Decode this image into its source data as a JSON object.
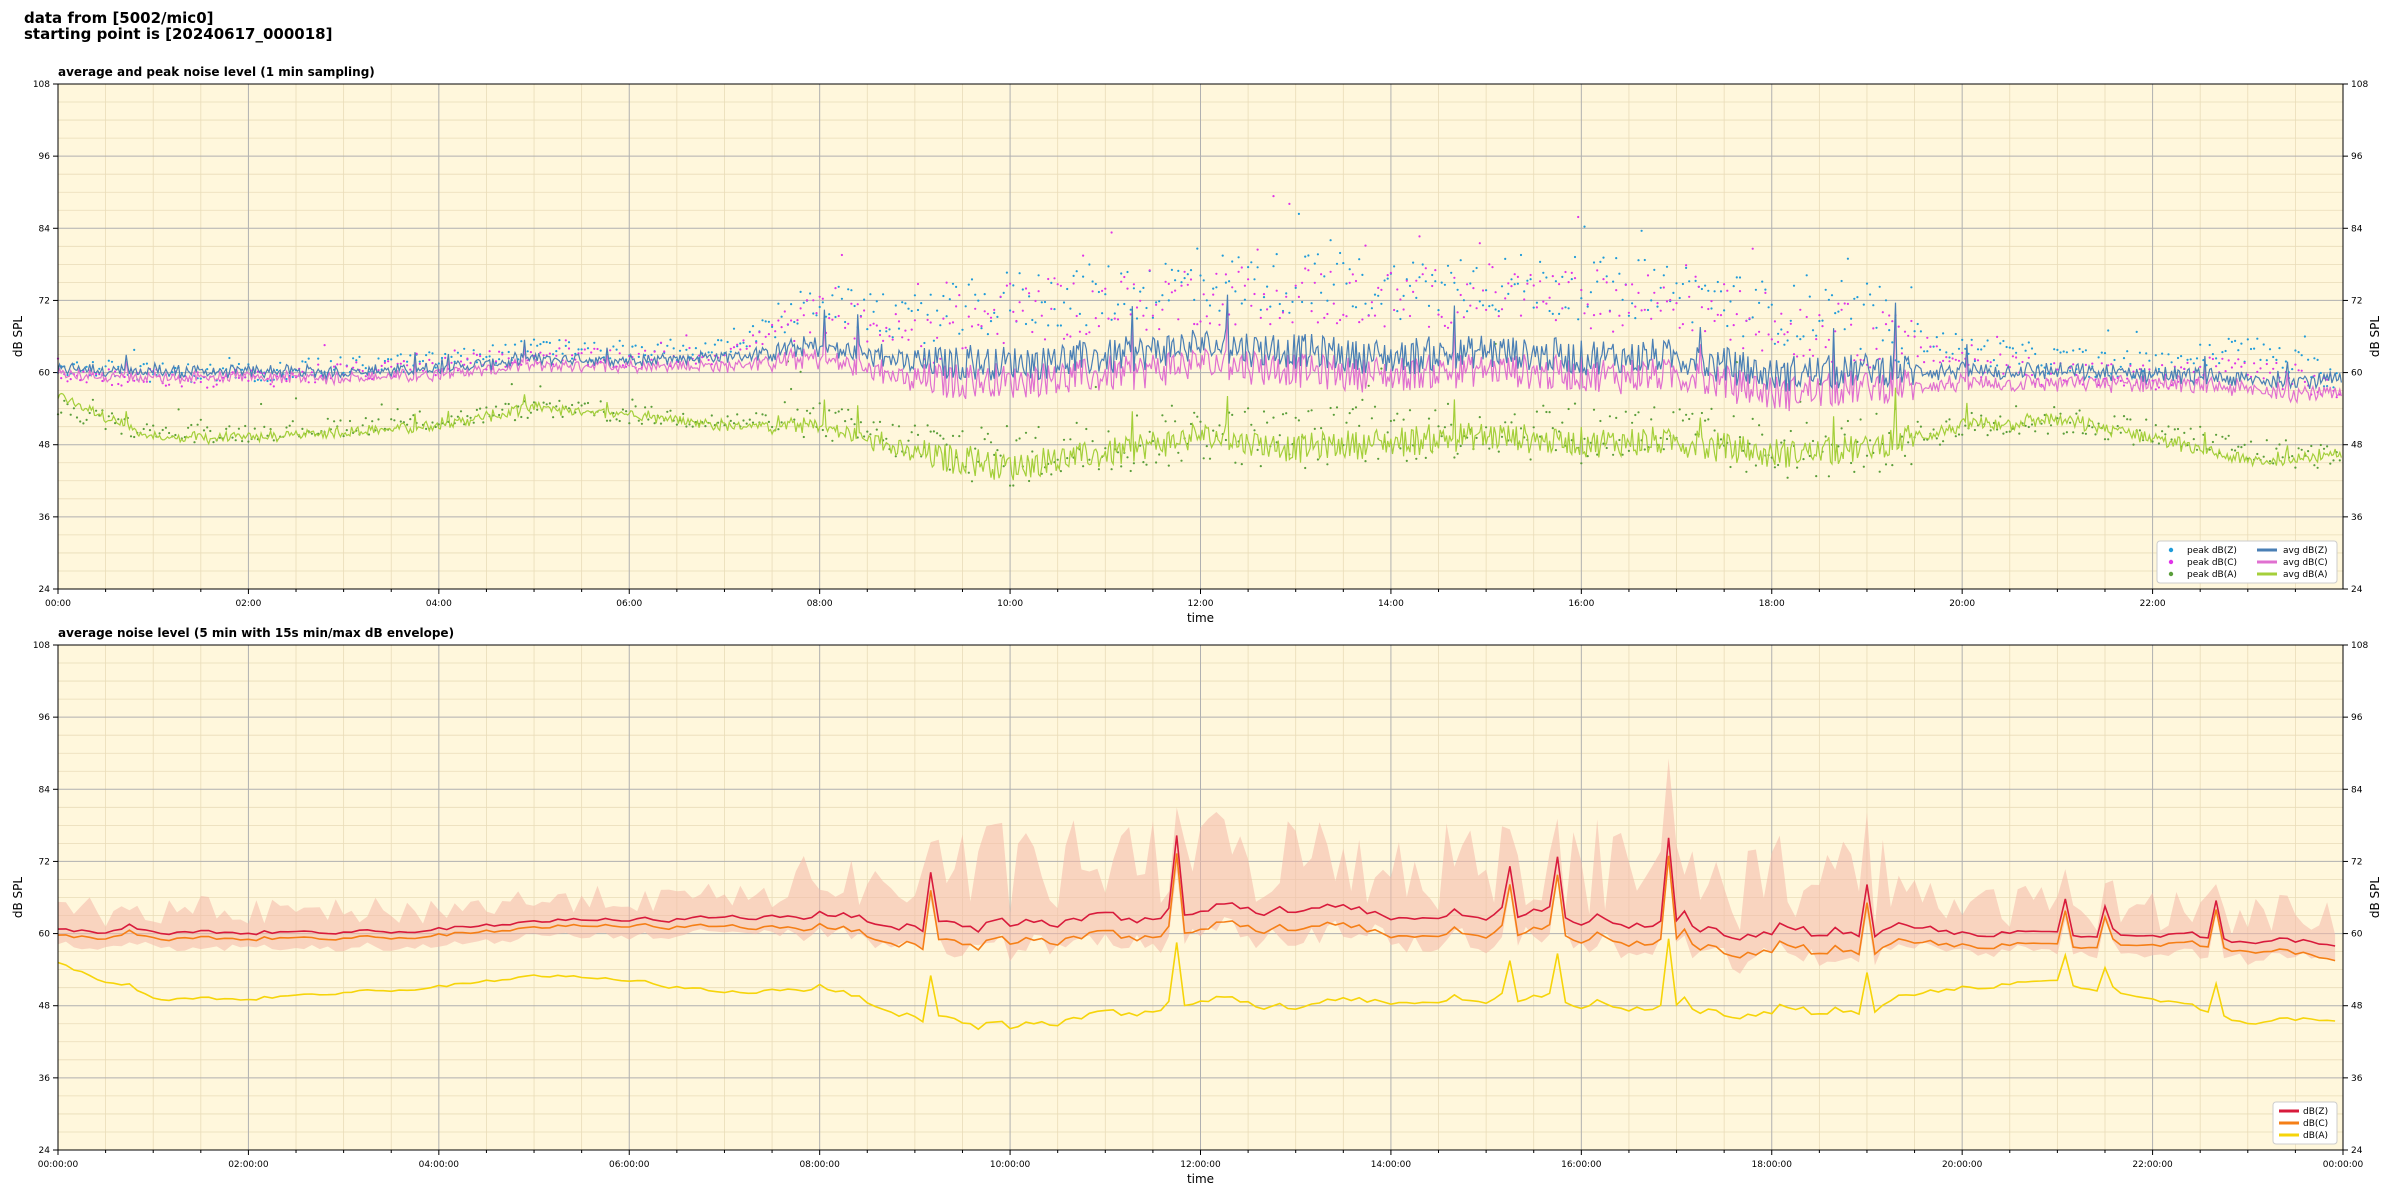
{
  "header": {
    "line1": "data from [5002/mic0]",
    "line2": "starting point is [20240617_000018]"
  },
  "chart_data": [
    {
      "type": "line",
      "title": "average and peak noise level (1 min sampling)",
      "xlabel": "time",
      "ylabel": "dB SPL",
      "xlim": [
        "00:00",
        "24:00"
      ],
      "ylim": [
        24,
        108
      ],
      "y_ticks": [
        24,
        36,
        48,
        60,
        72,
        84,
        96,
        108
      ],
      "x_tick_labels": [
        "00:00",
        "02:00",
        "04:00",
        "06:00",
        "08:00",
        "10:00",
        "12:00",
        "14:00",
        "16:00",
        "18:00",
        "20:00",
        "22:00"
      ],
      "grid": true,
      "legend_position": "bottom-right",
      "series": [
        {
          "name": "peak dB(Z)",
          "kind": "points",
          "color": "#1f9bd9",
          "x": [
            0,
            1,
            2,
            3,
            4,
            5,
            6,
            7,
            8,
            9,
            10,
            11,
            12,
            13,
            14,
            15,
            16,
            17,
            18,
            19,
            20,
            21,
            22,
            23,
            24
          ],
          "y": [
            63,
            62,
            62,
            63,
            64,
            66,
            65,
            66,
            74,
            70,
            74,
            75,
            77,
            77,
            76,
            77,
            76,
            76,
            72,
            70,
            66,
            64,
            63,
            66,
            61
          ]
        },
        {
          "name": "peak dB(C)",
          "kind": "points",
          "color": "#e033e8",
          "x": [
            0,
            1,
            2,
            3,
            4,
            5,
            6,
            7,
            8,
            9,
            10,
            11,
            12,
            13,
            14,
            15,
            16,
            17,
            18,
            19,
            20,
            21,
            22,
            23,
            24
          ],
          "y": [
            62,
            61,
            61,
            62,
            63,
            65,
            64,
            65,
            72,
            68,
            72,
            73,
            75,
            75,
            74,
            75,
            74,
            74,
            70,
            68,
            64,
            62,
            61,
            63,
            59
          ]
        },
        {
          "name": "peak dB(A)",
          "kind": "points",
          "color": "#5a9e3a",
          "x": [
            0,
            1,
            2,
            3,
            4,
            5,
            6,
            7,
            8,
            9,
            10,
            11,
            12,
            13,
            14,
            15,
            16,
            17,
            18,
            19,
            20,
            21,
            22,
            23,
            24
          ],
          "y": [
            56,
            52,
            52,
            53,
            54,
            56,
            55,
            54,
            54,
            50,
            48,
            50,
            52,
            51,
            52,
            53,
            52,
            52,
            49,
            50,
            53,
            54,
            52,
            49,
            48
          ]
        },
        {
          "name": "avg dB(Z)",
          "kind": "line",
          "color": "#4a7fb5",
          "x": [
            0,
            1,
            2,
            3,
            4,
            5,
            6,
            7,
            8,
            9,
            10,
            11,
            12,
            13,
            14,
            15,
            16,
            17,
            18,
            19,
            20,
            21,
            22,
            23,
            24
          ],
          "y": [
            60.5,
            60,
            60,
            60,
            60.5,
            62,
            62,
            62.5,
            64,
            61,
            61,
            62,
            64,
            63,
            62,
            63,
            62,
            62,
            59,
            60,
            60,
            60,
            59.5,
            58.5,
            58.5
          ]
        },
        {
          "name": "avg dB(C)",
          "kind": "line",
          "color": "#e070d0",
          "x": [
            0,
            1,
            2,
            3,
            4,
            5,
            6,
            7,
            8,
            9,
            10,
            11,
            12,
            13,
            14,
            15,
            16,
            17,
            18,
            19,
            20,
            21,
            22,
            23,
            24
          ],
          "y": [
            59.5,
            59,
            59,
            59,
            59.5,
            61,
            61,
            61,
            62,
            58,
            58,
            59,
            61,
            60,
            59,
            60,
            59,
            59,
            56,
            57,
            58,
            58,
            58,
            57,
            56
          ]
        },
        {
          "name": "avg dB(A)",
          "kind": "line",
          "color": "#a4cf3a",
          "x": [
            0,
            1,
            2,
            3,
            4,
            5,
            6,
            7,
            8,
            9,
            10,
            11,
            12,
            13,
            14,
            15,
            16,
            17,
            18,
            19,
            20,
            21,
            22,
            23,
            24
          ],
          "y": [
            56,
            49,
            49,
            50,
            51,
            54,
            53,
            51,
            51,
            46,
            44,
            46,
            49,
            47,
            48,
            49,
            48,
            48,
            46,
            47,
            51,
            52,
            49,
            45,
            46
          ]
        }
      ]
    },
    {
      "type": "line",
      "title": "average noise level (5 min with 15s min/max dB envelope)",
      "xlabel": "time",
      "ylabel": "dB SPL",
      "xlim": [
        "00:00:00",
        "00:00:00"
      ],
      "ylim": [
        24,
        108
      ],
      "y_ticks": [
        24,
        36,
        48,
        60,
        72,
        84,
        96,
        108
      ],
      "x_tick_labels": [
        "00:00:00",
        "02:00:00",
        "04:00:00",
        "06:00:00",
        "08:00:00",
        "10:00:00",
        "12:00:00",
        "14:00:00",
        "16:00:00",
        "18:00:00",
        "20:00:00",
        "22:00:00",
        "00:00:00"
      ],
      "grid": true,
      "legend_position": "bottom-right",
      "envelope": {
        "color": "#f4b8a8",
        "opacity": 0.55
      },
      "series": [
        {
          "name": "dB(Z)",
          "color": "#d81b3c",
          "x": [
            0,
            1,
            2,
            3,
            4,
            5,
            6,
            7,
            8,
            9,
            10,
            11,
            12,
            13,
            14,
            15,
            16,
            17,
            18,
            19,
            20,
            21,
            22,
            23,
            24
          ],
          "y": [
            60.5,
            60,
            60,
            60,
            60.5,
            62,
            62,
            62.5,
            63,
            61,
            61,
            62,
            64,
            63,
            62,
            63,
            62,
            62,
            59,
            60,
            60,
            60,
            59.5,
            58.5,
            58.5
          ]
        },
        {
          "name": "dB(C)",
          "color": "#f57f17",
          "x": [
            0,
            1,
            2,
            3,
            4,
            5,
            6,
            7,
            8,
            9,
            10,
            11,
            12,
            13,
            14,
            15,
            16,
            17,
            18,
            19,
            20,
            21,
            22,
            23,
            24
          ],
          "y": [
            59.5,
            59,
            59,
            59,
            59.5,
            61,
            61,
            61,
            61,
            58,
            58,
            59,
            61,
            60,
            59,
            60,
            59,
            59,
            56,
            57,
            58,
            58,
            58,
            57,
            56
          ]
        },
        {
          "name": "dB(A)",
          "color": "#f6d40a",
          "x": [
            0,
            1,
            2,
            3,
            4,
            5,
            6,
            7,
            8,
            9,
            10,
            11,
            12,
            13,
            14,
            15,
            16,
            17,
            18,
            19,
            20,
            21,
            22,
            23,
            24
          ],
          "y": [
            55,
            49,
            49,
            50,
            51,
            53,
            52,
            50,
            51,
            46,
            44,
            46,
            49,
            47,
            48,
            49,
            48,
            48,
            46,
            47,
            51,
            52,
            49,
            45,
            46
          ]
        }
      ]
    }
  ]
}
